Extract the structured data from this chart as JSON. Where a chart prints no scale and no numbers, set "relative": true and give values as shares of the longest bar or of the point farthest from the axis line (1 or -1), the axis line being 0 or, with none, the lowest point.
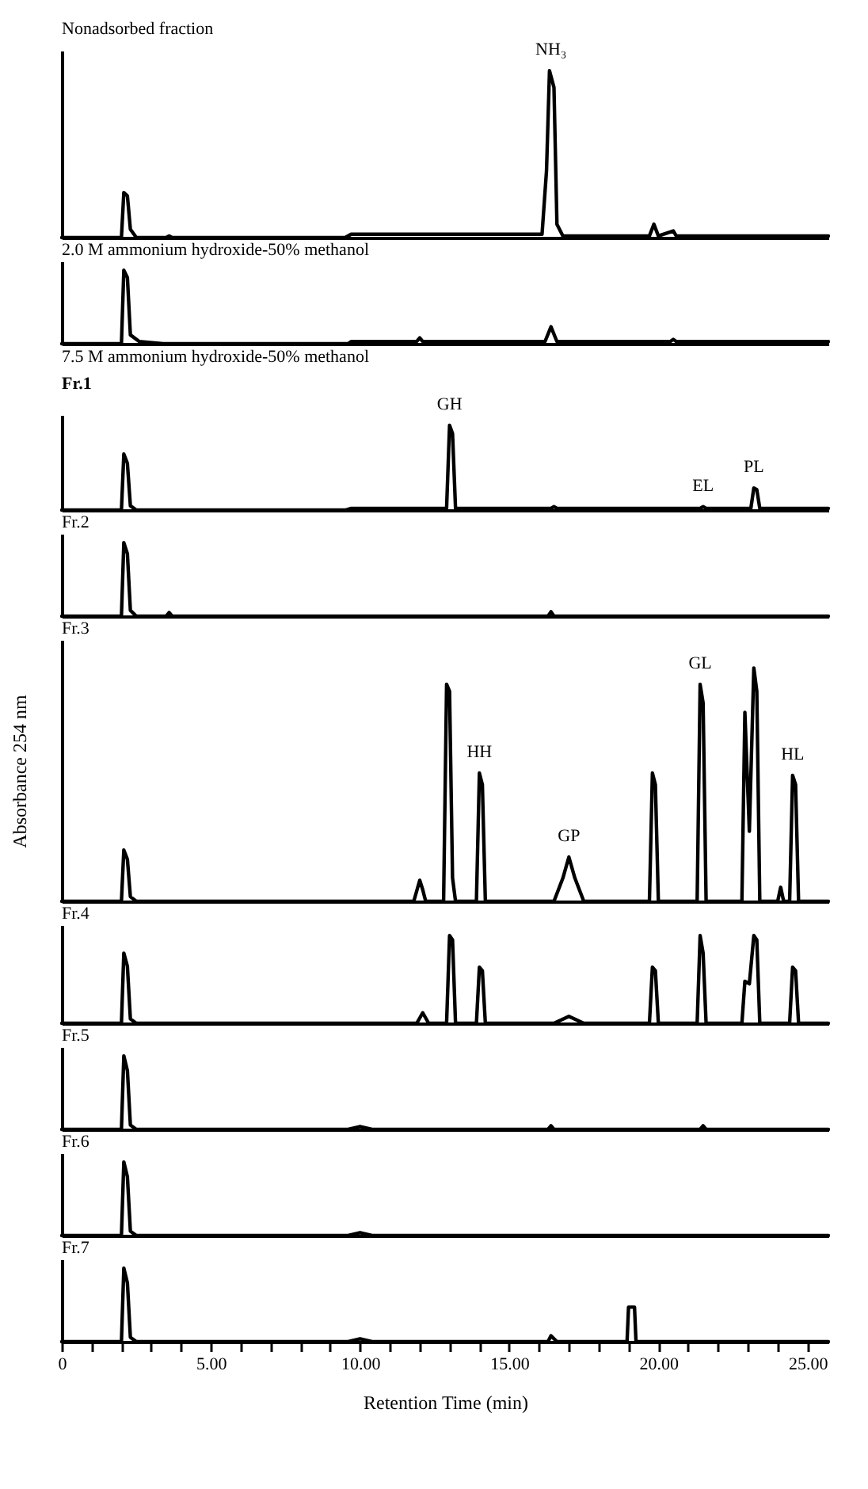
{
  "chart_data": [
    {
      "type": "line",
      "title": "Nonadsorbed fraction",
      "relative": true,
      "color": "#000000",
      "xlim": [
        0,
        25.7
      ],
      "tick_labels": false,
      "annotations": [
        {
          "text": "NH₃",
          "x": 16.4,
          "y": 1
        }
      ],
      "x": [
        0,
        2.0,
        2.08,
        2.2,
        2.3,
        2.5,
        3.5,
        3.6,
        3.7,
        9.5,
        9.7,
        16.1,
        16.25,
        16.35,
        16.5,
        16.6,
        16.8,
        19.7,
        19.85,
        20.0,
        20.5,
        20.6,
        20.7,
        25.7
      ],
      "values": [
        0,
        0,
        0.27,
        0.25,
        0.05,
        0,
        0,
        0.01,
        0,
        0,
        0.02,
        0.02,
        0.4,
        1,
        0.9,
        0.08,
        0.01,
        0.01,
        0.08,
        0.01,
        0.04,
        0.01,
        0.01,
        0.01
      ]
    },
    {
      "type": "line",
      "title": "2.0 M ammonium hydroxide-50% methanol",
      "relative": true,
      "color": "#000000",
      "xlim": [
        0,
        25.7
      ],
      "tick_labels": false,
      "x": [
        0,
        2.0,
        2.08,
        2.2,
        2.3,
        2.6,
        3.4,
        9.6,
        9.7,
        11.9,
        12.0,
        12.1,
        16.2,
        16.4,
        16.6,
        20.4,
        20.5,
        20.6,
        25.7
      ],
      "values": [
        0,
        0,
        1,
        0.9,
        0.12,
        0.03,
        0,
        0,
        0.03,
        0.03,
        0.08,
        0.03,
        0.03,
        0.23,
        0.03,
        0.03,
        0.06,
        0.03,
        0.03
      ]
    },
    {
      "type": "line",
      "title": "7.5 M ammonium hydroxide-50% methanol",
      "subtitle": "Fr.1",
      "relative": true,
      "color": "#000000",
      "xlim": [
        0,
        25.7
      ],
      "tick_labels": false,
      "annotations": [
        {
          "text": "GH",
          "x": 13.0,
          "y": 1
        },
        {
          "text": "EL",
          "x": 21.5,
          "y": 0.04
        },
        {
          "text": "PL",
          "x": 23.2,
          "y": 0.26
        }
      ],
      "x": [
        0,
        2.0,
        2.08,
        2.2,
        2.3,
        2.5,
        9.5,
        9.7,
        12.9,
        13.0,
        13.1,
        13.2,
        16.4,
        16.5,
        16.6,
        21.4,
        21.5,
        21.6,
        23.1,
        23.2,
        23.3,
        23.4,
        25.7
      ],
      "values": [
        0,
        0,
        0.66,
        0.55,
        0.05,
        0,
        0,
        0.02,
        0.02,
        1,
        0.9,
        0.02,
        0.02,
        0.04,
        0.02,
        0.02,
        0.04,
        0.02,
        0.02,
        0.26,
        0.24,
        0.02,
        0.02
      ]
    },
    {
      "type": "line",
      "title": "Fr.2",
      "relative": true,
      "color": "#000000",
      "xlim": [
        0,
        25.7
      ],
      "tick_labels": false,
      "x": [
        0,
        2.0,
        2.08,
        2.2,
        2.3,
        2.5,
        3.5,
        3.6,
        3.7,
        16.3,
        16.4,
        16.5,
        25.7
      ],
      "values": [
        0,
        0,
        1,
        0.85,
        0.08,
        0,
        0,
        0.05,
        0,
        0,
        0.06,
        0,
        0
      ]
    },
    {
      "type": "line",
      "title": "Fr.3",
      "ylabel": "Absorbance 254 nm",
      "relative": true,
      "color": "#000000",
      "xlim": [
        0,
        25.7
      ],
      "tick_labels": false,
      "annotations": [
        {
          "text": "HH",
          "x": 14.0,
          "y": 0.55
        },
        {
          "text": "GP",
          "x": 17.0,
          "y": 0.19
        },
        {
          "text": "GL",
          "x": 21.4,
          "y": 0.93
        },
        {
          "text": "HL",
          "x": 24.5,
          "y": 0.54
        }
      ],
      "x": [
        0,
        2.0,
        2.08,
        2.2,
        2.3,
        2.5,
        11.8,
        12.0,
        12.1,
        12.2,
        12.8,
        12.9,
        13.0,
        13.1,
        13.2,
        13.9,
        14.0,
        14.1,
        14.2,
        16.5,
        16.8,
        17.0,
        17.2,
        17.5,
        19.7,
        19.8,
        19.9,
        20.0,
        21.3,
        21.4,
        21.5,
        21.6,
        22.8,
        22.9,
        23.05,
        23.2,
        23.3,
        23.4,
        24.0,
        24.1,
        24.2,
        24.4,
        24.5,
        24.6,
        24.7,
        25.7
      ],
      "values": [
        0,
        0,
        0.22,
        0.18,
        0.02,
        0,
        0,
        0.09,
        0.05,
        0,
        0,
        0.93,
        0.9,
        0.1,
        0,
        0,
        0.55,
        0.5,
        0,
        0,
        0.1,
        0.19,
        0.1,
        0,
        0,
        0.55,
        0.5,
        0,
        0,
        0.93,
        0.85,
        0,
        0,
        0.81,
        0.3,
        1,
        0.9,
        0,
        0,
        0.06,
        0,
        0,
        0.54,
        0.5,
        0,
        0
      ]
    },
    {
      "type": "line",
      "title": "Fr.4",
      "relative": true,
      "color": "#000000",
      "xlim": [
        0,
        25.7
      ],
      "tick_labels": false,
      "x": [
        0,
        2.0,
        2.08,
        2.2,
        2.3,
        2.5,
        11.9,
        12.1,
        12.3,
        12.9,
        13.0,
        13.1,
        13.2,
        13.9,
        14.0,
        14.1,
        14.2,
        16.5,
        17.0,
        17.5,
        19.7,
        19.8,
        19.9,
        20.0,
        21.3,
        21.4,
        21.5,
        21.6,
        22.8,
        22.9,
        23.05,
        23.2,
        23.3,
        23.4,
        24.4,
        24.5,
        24.6,
        24.7,
        25.7
      ],
      "values": [
        0,
        0,
        0.8,
        0.65,
        0.05,
        0,
        0,
        0.12,
        0,
        0,
        1,
        0.95,
        0,
        0,
        0.64,
        0.6,
        0,
        0,
        0.08,
        0,
        0,
        0.64,
        0.6,
        0,
        0,
        1,
        0.8,
        0,
        0,
        0.48,
        0.45,
        1,
        0.95,
        0,
        0,
        0.64,
        0.6,
        0,
        0
      ]
    },
    {
      "type": "line",
      "title": "Fr.5",
      "relative": true,
      "color": "#000000",
      "xlim": [
        0,
        25.7
      ],
      "tick_labels": false,
      "x": [
        0,
        2.0,
        2.08,
        2.2,
        2.3,
        2.5,
        9.6,
        10.0,
        10.4,
        16.3,
        16.4,
        16.5,
        21.4,
        21.5,
        21.6,
        25.7
      ],
      "values": [
        0,
        0,
        1,
        0.8,
        0.06,
        0,
        0,
        0.04,
        0,
        0,
        0.05,
        0,
        0,
        0.05,
        0,
        0
      ]
    },
    {
      "type": "line",
      "title": "Fr.6",
      "relative": true,
      "color": "#000000",
      "xlim": [
        0,
        25.7
      ],
      "tick_labels": false,
      "x": [
        0,
        2.0,
        2.08,
        2.2,
        2.3,
        2.5,
        9.6,
        10.0,
        10.4,
        25.7
      ],
      "values": [
        0,
        0,
        1,
        0.8,
        0.06,
        0,
        0,
        0.04,
        0,
        0
      ]
    },
    {
      "type": "line",
      "title": "Fr.7",
      "xlabel": "Retention Time (min)",
      "relative": true,
      "color": "#000000",
      "xlim": [
        0,
        25.7
      ],
      "tick_labels": "x",
      "xticks": [
        0,
        {
          "value": 1,
          "label": null
        },
        {
          "value": 2,
          "label": null
        },
        {
          "value": 3,
          "label": null
        },
        {
          "value": 4,
          "label": null
        },
        {
          "value": 5,
          "label": "5.00"
        },
        {
          "value": 6,
          "label": null
        },
        {
          "value": 7,
          "label": null
        },
        {
          "value": 8,
          "label": null
        },
        {
          "value": 9,
          "label": null
        },
        {
          "value": 10,
          "label": "10.00"
        },
        {
          "value": 11,
          "label": null
        },
        {
          "value": 12,
          "label": null
        },
        {
          "value": 13,
          "label": null
        },
        {
          "value": 14,
          "label": null
        },
        {
          "value": 15,
          "label": "15.00"
        },
        {
          "value": 16,
          "label": null
        },
        {
          "value": 17,
          "label": null
        },
        {
          "value": 18,
          "label": null
        },
        {
          "value": 19,
          "label": null
        },
        {
          "value": 20,
          "label": "20.00"
        },
        {
          "value": 21,
          "label": null
        },
        {
          "value": 22,
          "label": null
        },
        {
          "value": 23,
          "label": null
        },
        {
          "value": 24,
          "label": null
        },
        {
          "value": 25,
          "label": "25.00"
        }
      ],
      "x": [
        0,
        2.0,
        2.08,
        2.2,
        2.3,
        2.5,
        9.6,
        10.0,
        10.4,
        16.3,
        16.4,
        16.6,
        18.95,
        19.0,
        19.2,
        19.25,
        25.7
      ],
      "values": [
        0,
        0,
        1,
        0.8,
        0.06,
        0,
        0,
        0.04,
        0,
        0,
        0.08,
        0,
        0,
        0.47,
        0.47,
        0,
        0
      ]
    }
  ]
}
